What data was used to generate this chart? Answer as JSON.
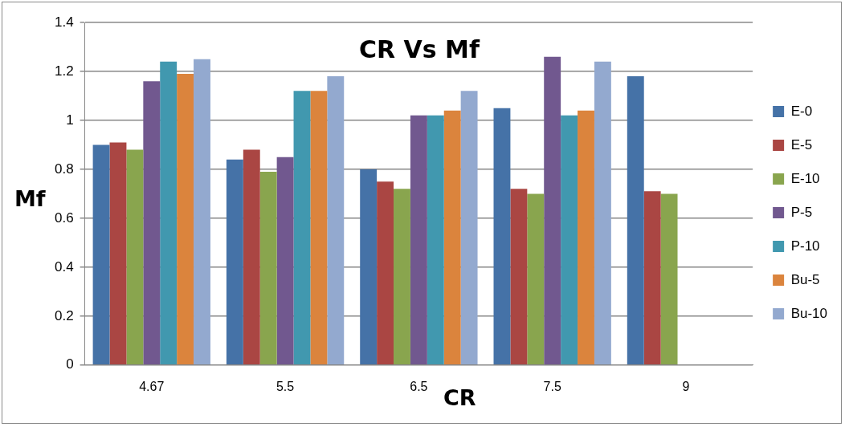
{
  "chart_data": {
    "type": "bar",
    "title": "CR Vs Mf",
    "xlabel": "CR",
    "ylabel": "Mf",
    "categories": [
      "4.67",
      "5.5",
      "6.5",
      "7.5",
      "9"
    ],
    "series": [
      {
        "name": "E-0",
        "color": "#4572a7",
        "values": [
          0.9,
          0.84,
          0.8,
          1.05,
          1.18
        ]
      },
      {
        "name": "E-5",
        "color": "#aa4643",
        "values": [
          0.91,
          0.88,
          0.75,
          0.72,
          0.71
        ]
      },
      {
        "name": "E-10",
        "color": "#89a54e",
        "values": [
          0.88,
          0.79,
          0.72,
          0.7,
          0.7
        ]
      },
      {
        "name": "P-5",
        "color": "#71588f",
        "values": [
          1.16,
          0.85,
          1.02,
          1.26,
          null
        ]
      },
      {
        "name": "P-10",
        "color": "#4198af",
        "values": [
          1.24,
          1.12,
          1.02,
          1.02,
          null
        ]
      },
      {
        "name": "Bu-5",
        "color": "#db843d",
        "values": [
          1.19,
          1.12,
          1.04,
          1.04,
          null
        ]
      },
      {
        "name": "Bu-10",
        "color": "#93a9cf",
        "values": [
          1.25,
          1.18,
          1.12,
          1.24,
          null
        ]
      }
    ],
    "ylim": [
      0,
      1.4
    ],
    "yticks": [
      0,
      {
        "value": 0.2,
        "label": "0.2"
      },
      {
        "value": 0.4,
        "label": "0.4"
      },
      {
        "value": 0.6,
        "label": "0.6"
      },
      {
        "value": 0.8,
        "label": "0.8"
      },
      1,
      {
        "value": 1.2,
        "label": "1.2"
      },
      {
        "value": 1.4,
        "label": "1.4"
      }
    ],
    "grid": "y",
    "legend": "right"
  }
}
